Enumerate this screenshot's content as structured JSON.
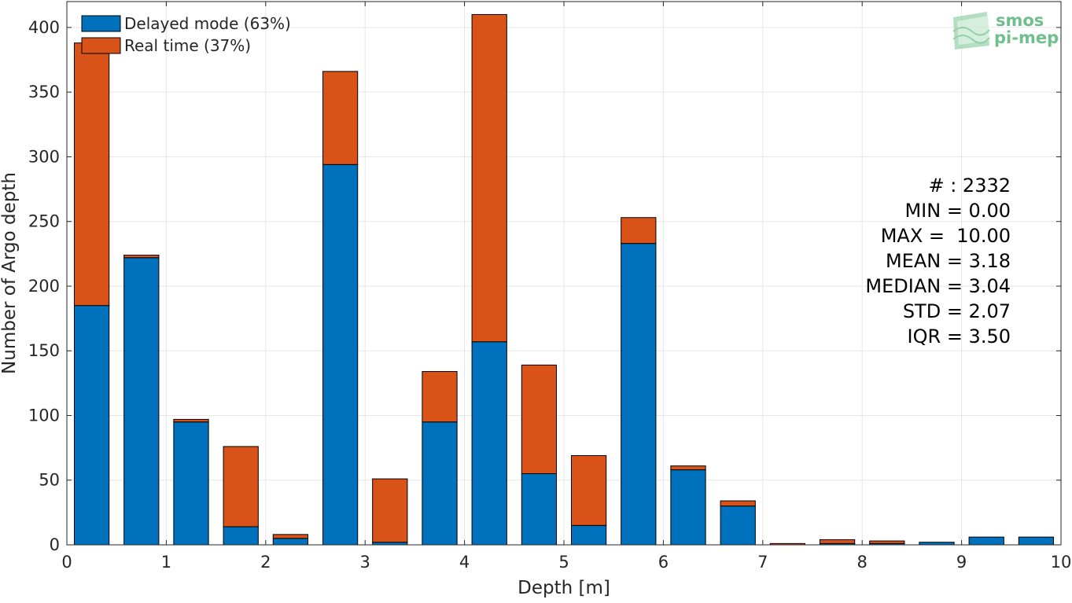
{
  "chart_data": {
    "type": "bar",
    "stacked": true,
    "xlabel": "Depth [m]",
    "ylabel": "Number of Argo depth",
    "xlim": [
      0,
      10
    ],
    "ylim": [
      0,
      420
    ],
    "xticks": [
      0,
      1,
      2,
      3,
      4,
      5,
      6,
      7,
      8,
      9,
      10
    ],
    "yticks": [
      0,
      50,
      100,
      150,
      200,
      250,
      300,
      350,
      400
    ],
    "grid": true,
    "legend_position": "top-left",
    "bin_width": 0.5,
    "bar_width": 0.35,
    "x": [
      0.25,
      0.75,
      1.25,
      1.75,
      2.25,
      2.75,
      3.25,
      3.75,
      4.25,
      4.75,
      5.25,
      5.75,
      6.25,
      6.75,
      7.25,
      7.75,
      8.25,
      8.75,
      9.25,
      9.75
    ],
    "series": [
      {
        "name": "Delayed mode (63%)",
        "color": "#0072BD",
        "values": [
          185,
          222,
          95,
          14,
          5,
          294,
          2,
          95,
          157,
          55,
          15,
          233,
          58,
          30,
          0,
          1,
          1,
          2,
          6,
          6
        ]
      },
      {
        "name": "Real time (37%)",
        "color": "#D95319",
        "values": [
          203,
          2,
          2,
          62,
          3,
          72,
          49,
          39,
          253,
          84,
          54,
          20,
          3,
          4,
          1,
          3,
          2,
          0,
          0,
          0
        ]
      }
    ],
    "annotations": [
      "# : 2332",
      "MIN = 0.00",
      "MAX =  10.00",
      "MEAN = 3.18",
      "MEDIAN = 3.04",
      "STD = 2.07",
      "IQR = 3.50"
    ]
  },
  "logo": {
    "line1": "smos",
    "line2": "pi-mep",
    "color": "#6fbf8c"
  }
}
